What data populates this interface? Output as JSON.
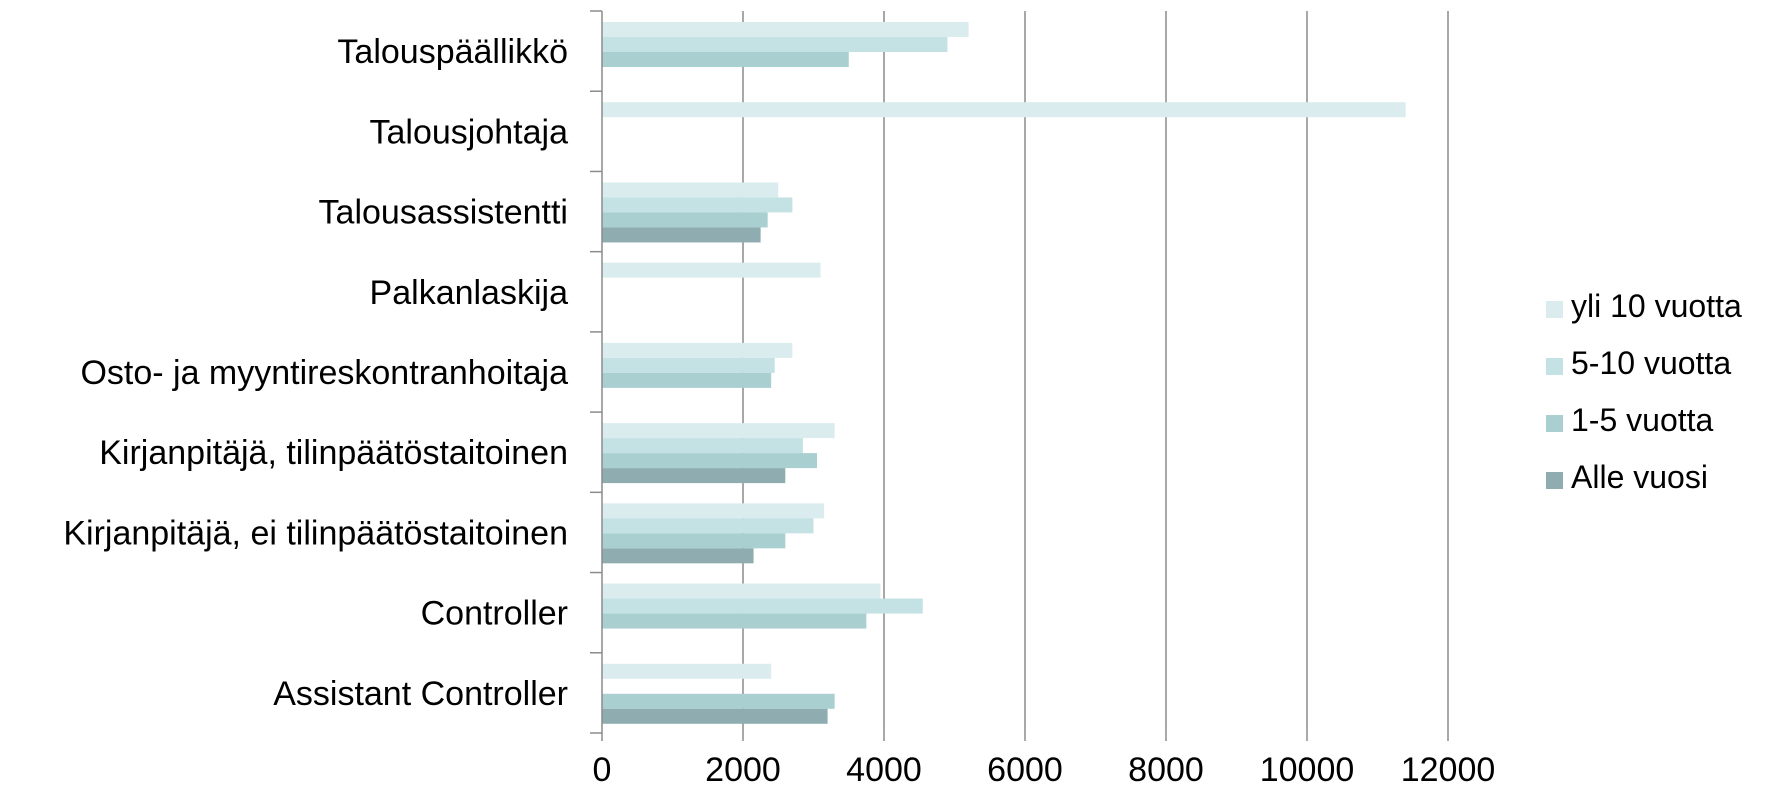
{
  "chart_data": {
    "type": "bar",
    "orientation": "horizontal",
    "title": "",
    "xlabel": "",
    "ylabel": "",
    "xlim": [
      0,
      12000
    ],
    "x_ticks": [
      "0",
      "2000",
      "4000",
      "6000",
      "8000",
      "10000",
      "12000"
    ],
    "grid": "vertical",
    "legend_position": "right",
    "categories": [
      "Talouspäällikkö",
      "Talousjohtaja",
      "Talousassistentti",
      "Palkanlaskija",
      "Osto- ja myyntireskontranhoitaja",
      "Kirjanpitäjä, tilinpäätöstaitoinen",
      "Kirjanpitäjä, ei tilinpäätöstaitoinen",
      "Controller",
      "Assistant Controller"
    ],
    "series": [
      {
        "name": "yli 10 vuotta",
        "color": "#dbecee",
        "values": [
          5200,
          11400,
          2500,
          3100,
          2700,
          3300,
          3150,
          3950,
          2400
        ]
      },
      {
        "name": "5-10 vuotta",
        "color": "#c4e2e4",
        "values": [
          4900,
          null,
          2700,
          null,
          2450,
          2850,
          3000,
          4550,
          null
        ]
      },
      {
        "name": "1-5 vuotta",
        "color": "#a9cfd1",
        "values": [
          3500,
          null,
          2350,
          null,
          2400,
          3050,
          2600,
          3750,
          3300
        ]
      },
      {
        "name": "Alle vuosi",
        "color": "#8fadb0",
        "values": [
          null,
          null,
          2250,
          null,
          null,
          2600,
          2150,
          null,
          3200
        ]
      }
    ]
  }
}
